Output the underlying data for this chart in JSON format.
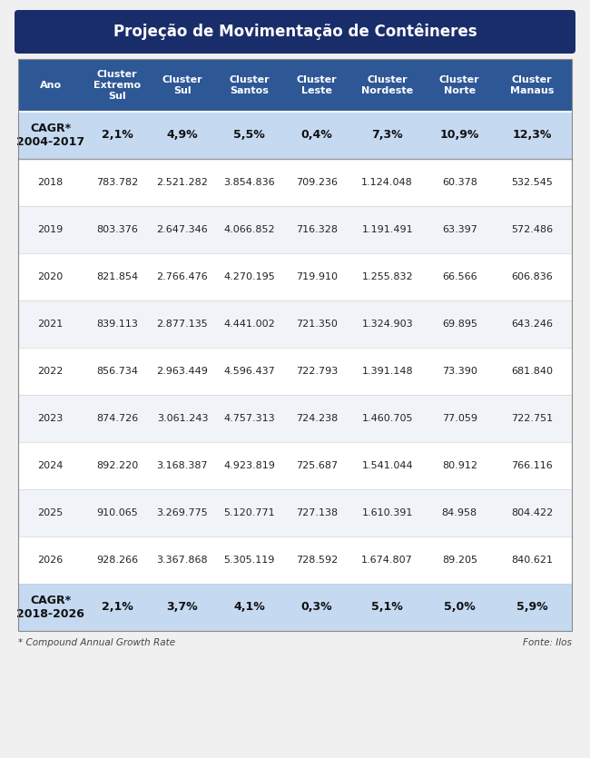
{
  "title": "Projeção de Movimentação de Contêineres",
  "col_headers": [
    "Ano",
    "Cluster\nExtremo\nSul",
    "Cluster\nSul",
    "Cluster\nSantos",
    "Cluster\nLeste",
    "Cluster\nNordeste",
    "Cluster\nNorte",
    "Cluster\nManaus"
  ],
  "cagr_2004_2017": [
    "CAGR*\n2004-2017",
    "2,1%",
    "4,9%",
    "5,5%",
    "0,4%",
    "7,3%",
    "10,9%",
    "12,3%"
  ],
  "cagr_2018_2026": [
    "CAGR*\n2018-2026",
    "2,1%",
    "3,7%",
    "4,1%",
    "0,3%",
    "5,1%",
    "5,0%",
    "5,9%"
  ],
  "data_rows": [
    [
      "2018",
      "783.782",
      "2.521.282",
      "3.854.836",
      "709.236",
      "1.124.048",
      "60.378",
      "532.545"
    ],
    [
      "2019",
      "803.376",
      "2.647.346",
      "4.066.852",
      "716.328",
      "1.191.491",
      "63.397",
      "572.486"
    ],
    [
      "2020",
      "821.854",
      "2.766.476",
      "4.270.195",
      "719.910",
      "1.255.832",
      "66.566",
      "606.836"
    ],
    [
      "2021",
      "839.113",
      "2.877.135",
      "4.441.002",
      "721.350",
      "1.324.903",
      "69.895",
      "643.246"
    ],
    [
      "2022",
      "856.734",
      "2.963.449",
      "4.596.437",
      "722.793",
      "1.391.148",
      "73.390",
      "681.840"
    ],
    [
      "2023",
      "874.726",
      "3.061.243",
      "4.757.313",
      "724.238",
      "1.460.705",
      "77.059",
      "722.751"
    ],
    [
      "2024",
      "892.220",
      "3.168.387",
      "4.923.819",
      "725.687",
      "1.541.044",
      "80.912",
      "766.116"
    ],
    [
      "2025",
      "910.065",
      "3.269.775",
      "5.120.771",
      "727.138",
      "1.610.391",
      "84.958",
      "804.422"
    ],
    [
      "2026",
      "928.266",
      "3.367.868",
      "5.305.119",
      "728.592",
      "1.674.807",
      "89.205",
      "840.621"
    ]
  ],
  "title_bg": "#1a2d6b",
  "title_color": "#ffffff",
  "header_bg": "#2e5796",
  "header_color": "#ffffff",
  "cagr_bg": "#c5d9f1",
  "cagr_color": "#111111",
  "row_bg_white": "#ffffff",
  "row_bg_light": "#f0f4f8",
  "row_color": "#222222",
  "footer_note": "* Compound Annual Growth Rate",
  "footer_source": "Fonte: Ilos",
  "col_weights": [
    0.105,
    0.112,
    0.1,
    0.118,
    0.1,
    0.13,
    0.105,
    0.13
  ]
}
